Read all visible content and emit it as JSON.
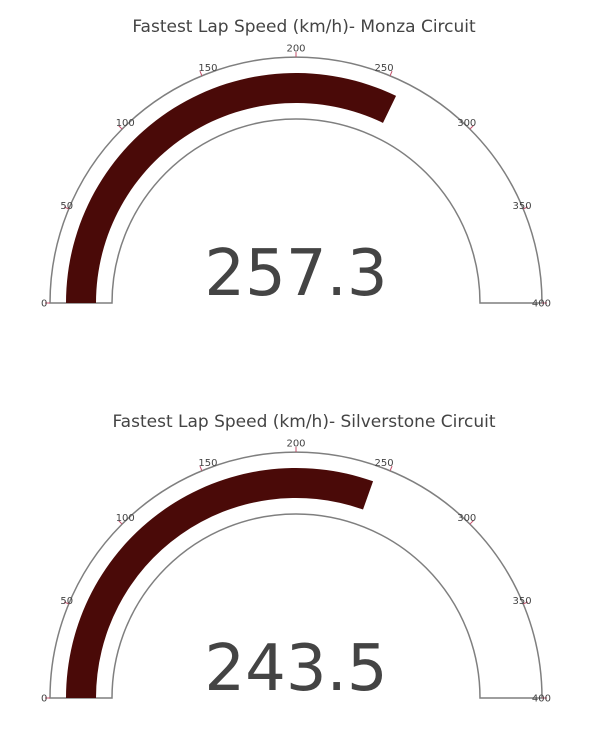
{
  "chart_data": [
    {
      "type": "gauge",
      "title": "Fastest Lap Speed (km/h)- Monza Circuit",
      "value": 257.3,
      "value_label": "257.3",
      "range": [
        0,
        400
      ],
      "ticks": [
        0,
        50,
        100,
        150,
        200,
        250,
        300,
        350,
        400
      ],
      "tick_labels": [
        "0",
        "50",
        "100",
        "150",
        "200",
        "250",
        "300",
        "350",
        "400"
      ],
      "bar_color": "#4a0a08"
    },
    {
      "type": "gauge",
      "title": "Fastest Lap Speed (km/h)- Silverstone Circuit",
      "value": 243.5,
      "value_label": "243.5",
      "range": [
        0,
        400
      ],
      "ticks": [
        0,
        50,
        100,
        150,
        200,
        250,
        300,
        350,
        400
      ],
      "tick_labels": [
        "0",
        "50",
        "100",
        "150",
        "200",
        "250",
        "300",
        "350",
        "400"
      ],
      "bar_color": "#4a0a08"
    }
  ]
}
